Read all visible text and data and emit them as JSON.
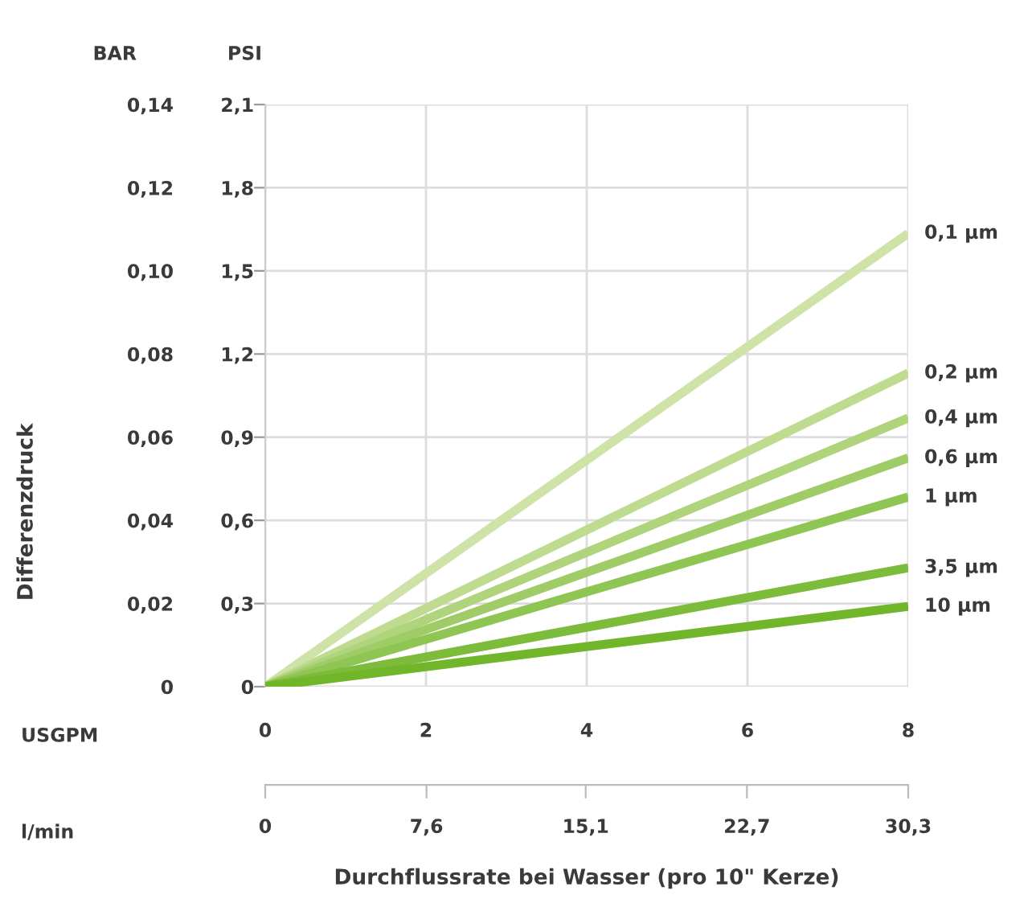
{
  "chart_data": {
    "type": "line",
    "xlabel": "Durchflussrate bei Wasser (pro 10\" Kerze)",
    "ylabel": "Differenzdruck",
    "x2label": "l/min",
    "y2label": "PSI",
    "annotations": [
      "BAR",
      "USGPM"
    ],
    "x": [
      0,
      8
    ],
    "series": [
      {
        "name": "0,1 µm",
        "color": "#cfe3a8",
        "values": [
          0,
          0.109
        ]
      },
      {
        "name": "0,2 µm",
        "color": "#bedb90",
        "values": [
          0,
          0.0754
        ]
      },
      {
        "name": "0,4 µm",
        "color": "#afd47c",
        "values": [
          0,
          0.0646
        ]
      },
      {
        "name": "0,6 µm",
        "color": "#9fcc66",
        "values": [
          0,
          0.055
        ]
      },
      {
        "name": "1 µm",
        "color": "#8fc552",
        "values": [
          0,
          0.0456
        ]
      },
      {
        "name": "3,5 µm",
        "color": "#7dbc3a",
        "values": [
          0,
          0.0286
        ]
      },
      {
        "name": "10 µm",
        "color": "#70b52a",
        "values": [
          0,
          0.0193
        ]
      }
    ],
    "xlim": [
      0,
      8
    ],
    "xticks": [
      0,
      2,
      4,
      6,
      8
    ],
    "x2lim": [
      0,
      30.3
    ],
    "x2ticks": [
      0,
      {
        "value": 7.6,
        "label": "7,6"
      },
      {
        "value": 15.1,
        "label": "15,1"
      },
      {
        "value": 22.7,
        "label": "22,7"
      },
      {
        "value": 30.3,
        "label": "30,3"
      }
    ],
    "ylim": [
      0,
      0.14
    ],
    "yticks": [
      {
        "value": 0,
        "label": "0"
      },
      {
        "value": 0.02,
        "label": "0,02"
      },
      {
        "value": 0.04,
        "label": "0,04"
      },
      {
        "value": 0.06,
        "label": "0,06"
      },
      {
        "value": 0.08,
        "label": "0,08"
      },
      {
        "value": 0.1,
        "label": "0,10"
      },
      {
        "value": 0.12,
        "label": "0,12"
      },
      {
        "value": 0.14,
        "label": "0,14"
      }
    ],
    "y2lim": [
      0,
      2.1
    ],
    "y2ticks": [
      0,
      {
        "value": 0.3,
        "label": "0,3"
      },
      {
        "value": 0.6,
        "label": "0,6"
      },
      {
        "value": 0.9,
        "label": "0,9"
      },
      {
        "value": 1.2,
        "label": "1,2"
      },
      {
        "value": 1.5,
        "label": "1,5"
      },
      {
        "value": 1.8,
        "label": "1,8"
      },
      {
        "value": 2.1,
        "label": "2,1"
      }
    ],
    "grid": true,
    "legend": false,
    "marker": "none",
    "line_style": "solid"
  }
}
